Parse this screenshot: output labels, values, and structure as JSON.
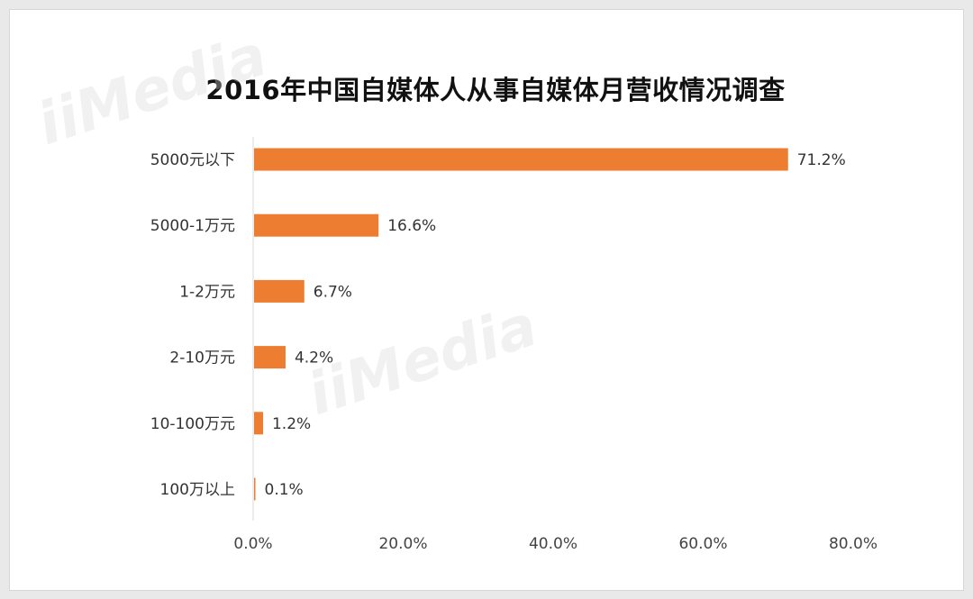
{
  "chart_data": {
    "type": "bar",
    "orientation": "horizontal",
    "title": "2016年中国自媒体人从事自媒体月营收情况调查",
    "categories": [
      "5000元以下",
      "5000-1万元",
      "1-2万元",
      "2-10万元",
      "10-100万元",
      "100万以上"
    ],
    "values": [
      71.2,
      16.6,
      6.7,
      4.2,
      1.2,
      0.1
    ],
    "value_labels": [
      "71.2%",
      "16.6%",
      "6.7%",
      "4.2%",
      "1.2%",
      "0.1%"
    ],
    "x_ticks": [
      "0.0%",
      "20.0%",
      "40.0%",
      "60.0%",
      "80.0%"
    ],
    "xlim": [
      0,
      80
    ],
    "xlabel": "",
    "ylabel": "",
    "grid": false,
    "legend": "none",
    "bar_color": "#ED7D31"
  },
  "watermark": "iiMedia"
}
